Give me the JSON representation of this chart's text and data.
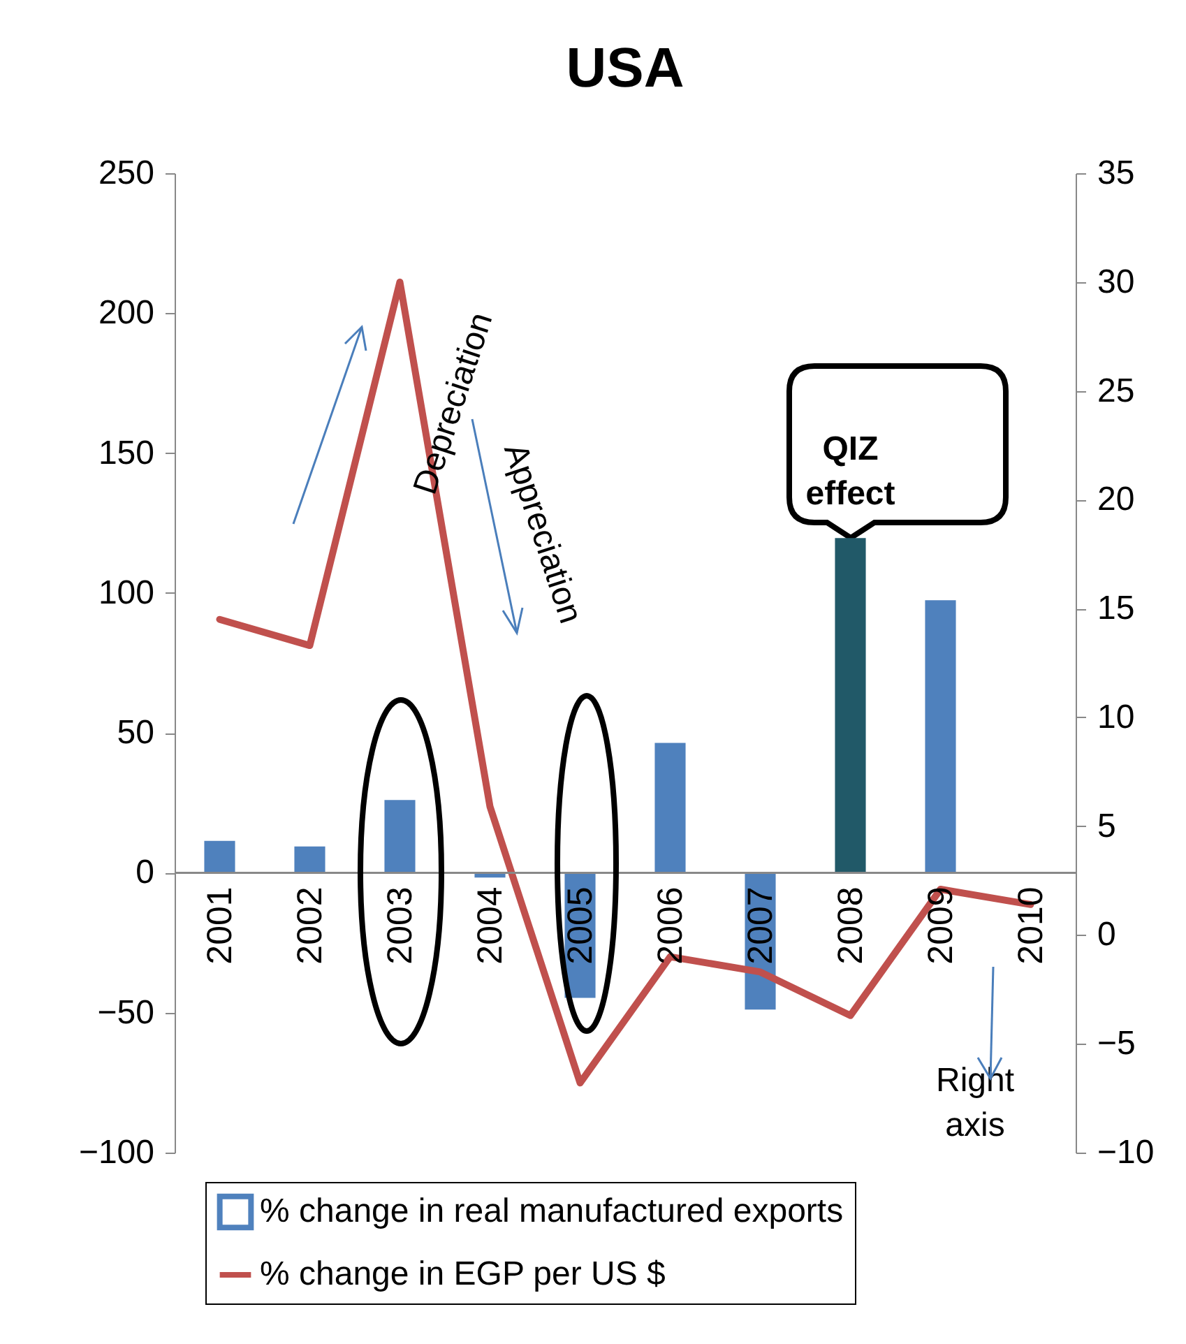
{
  "chart_data": {
    "type": "bar",
    "title": "USA",
    "categories": [
      "2001",
      "2002",
      "2003",
      "2004",
      "2005",
      "2006",
      "2007",
      "2008",
      "2009",
      "2010"
    ],
    "series": [
      {
        "name": "% change in real manufactured exports",
        "color": "#4f81bd",
        "colors": [
          "#4f81bd",
          "#4f81bd",
          "#4f81bd",
          "#4f81bd",
          "#4f81bd",
          "#4f81bd",
          "#4f81bd",
          "#215968",
          "#4f81bd",
          "#4f81bd"
        ],
        "values": [
          11.4,
          9.4,
          26,
          -1.7,
          -44.7,
          46.4,
          -48.9,
          119.6,
          97.4,
          0.3
        ]
      },
      {
        "name": "% change in EGP per US $",
        "type": "line",
        "axis": "y2",
        "color": "#c0504d",
        "values": [
          14.5,
          13.3,
          30.0,
          5.9,
          -6.8,
          -1.0,
          -1.7,
          -3.7,
          2.1,
          1.4
        ]
      }
    ],
    "ylim": [
      -100,
      250
    ],
    "yticks": [
      -100,
      -50,
      0,
      50,
      100,
      150,
      200,
      250
    ],
    "y2lim": [
      -10,
      35
    ],
    "y2ticks": [
      -10,
      -5,
      0,
      5,
      10,
      15,
      20,
      25,
      30,
      35
    ],
    "annotations": [
      "Depreciation",
      "Appreciation",
      "Right axis",
      {
        "text": "QIZ effect",
        "x": "2008",
        "y": 119.6
      }
    ],
    "legend": "bottom",
    "grid": false,
    "marker": "none"
  }
}
